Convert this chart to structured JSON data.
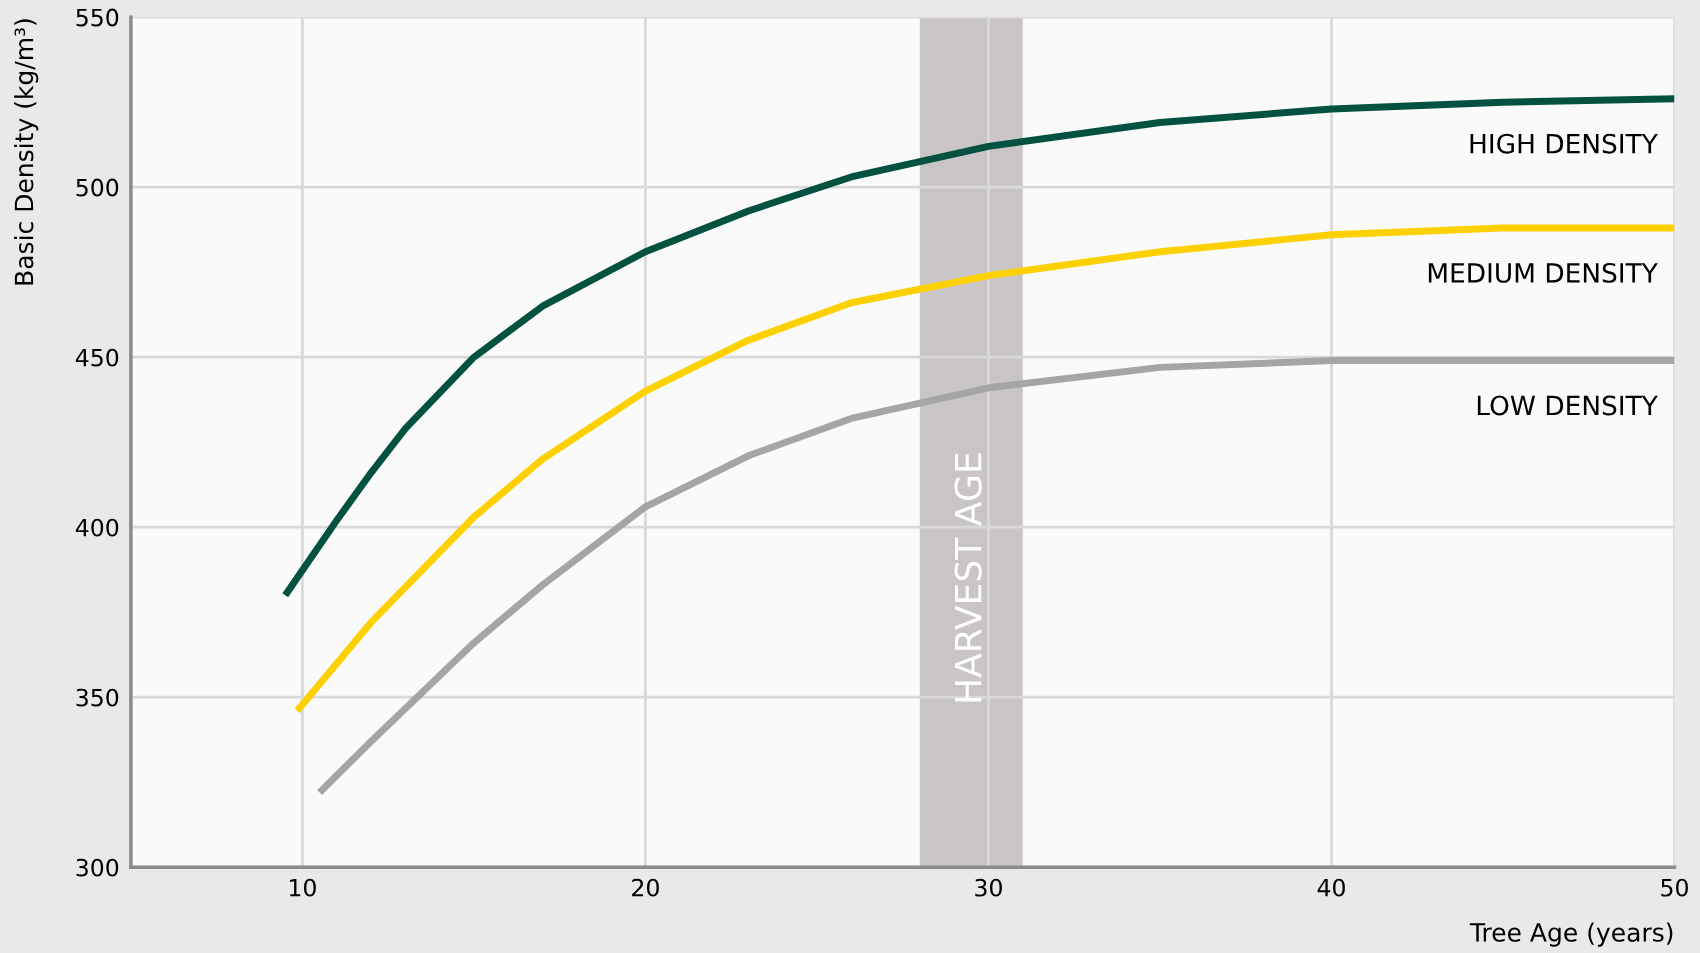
{
  "chart_data": {
    "type": "line",
    "xlabel": "Tree Age (years)",
    "ylabel": "Basic Density (kg/m³)",
    "xlim": [
      5,
      50
    ],
    "ylim": [
      300,
      550
    ],
    "xticks": [
      10,
      20,
      30,
      40,
      50
    ],
    "yticks": [
      300,
      350,
      400,
      450,
      500,
      550
    ],
    "grid": true,
    "legend": false,
    "marker": "none",
    "line_style": "solid",
    "bands": [
      {
        "axis": "x",
        "from": 28,
        "to": 31,
        "label": "HARVEST AGE",
        "color": "#c9c5c6"
      }
    ],
    "series": [
      {
        "name": "HIGH DENSITY",
        "color": "#03513f",
        "x": [
          9.5,
          11,
          12,
          13,
          15,
          17,
          20,
          23,
          26,
          30,
          35,
          40,
          45,
          50
        ],
        "values": [
          380,
          402,
          416,
          429,
          450,
          465,
          481,
          493,
          503,
          512,
          519,
          523,
          525,
          526
        ]
      },
      {
        "name": "MEDIUM DENSITY",
        "color": "#fdd000",
        "x": [
          9.85,
          12,
          15,
          17,
          20,
          23,
          26,
          30,
          35,
          40,
          45,
          50
        ],
        "values": [
          346,
          372,
          403,
          420,
          440,
          455,
          466,
          474,
          481,
          486,
          488,
          488
        ]
      },
      {
        "name": "LOW DENSITY",
        "color": "#a4a6a5",
        "x": [
          10.5,
          12,
          15,
          17,
          20,
          23,
          26,
          30,
          35,
          40,
          45,
          50
        ],
        "values": [
          322,
          337,
          366,
          383,
          406,
          421,
          432,
          441,
          447,
          449,
          449,
          449
        ]
      }
    ]
  }
}
